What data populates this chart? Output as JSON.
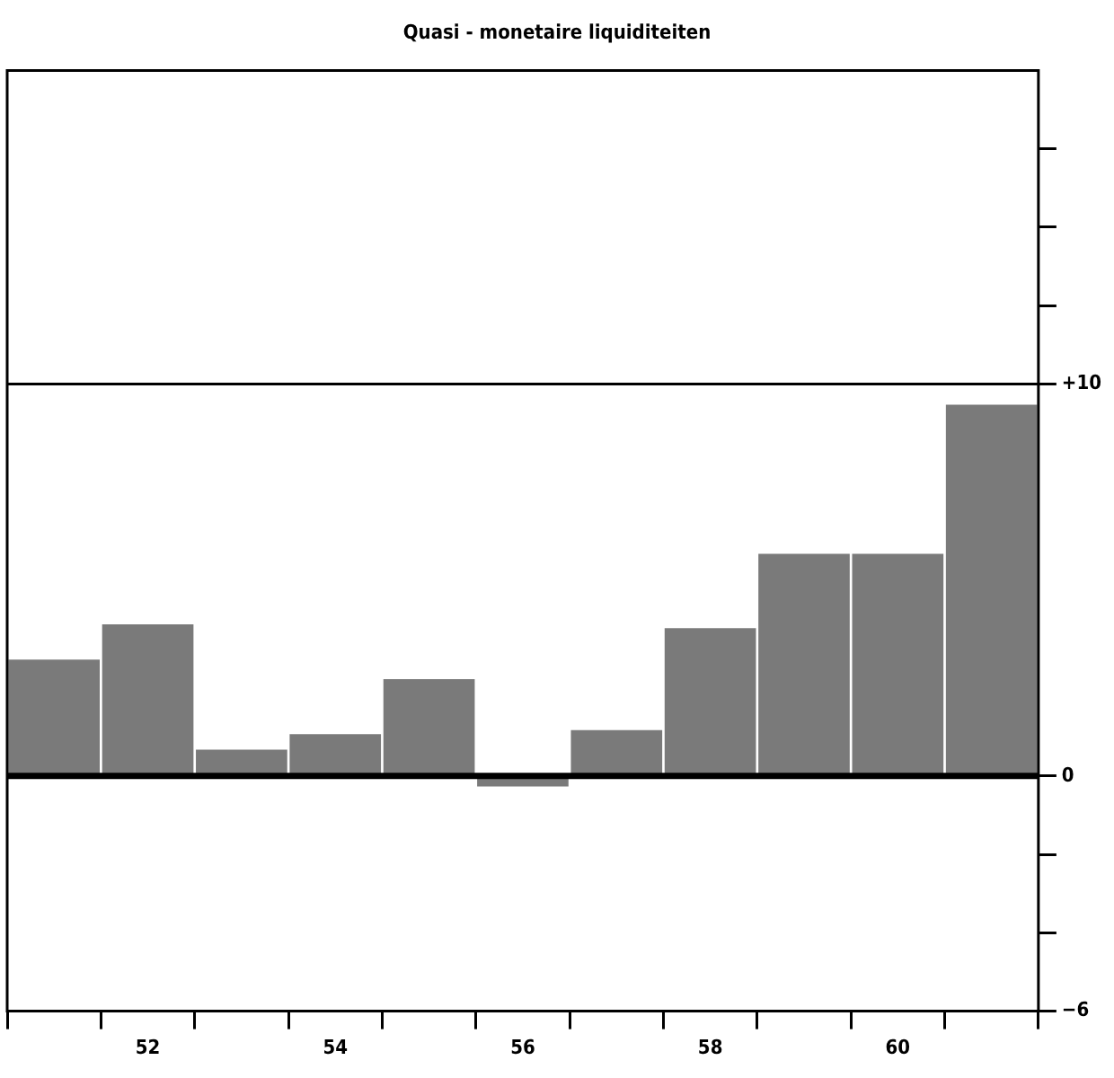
{
  "chart_data": {
    "type": "bar",
    "title": "Quasi - monetaire liquiditeiten",
    "categories": [
      null,
      "52",
      null,
      "54",
      null,
      "56",
      null,
      "58",
      null,
      "60",
      null
    ],
    "values": [
      3.0,
      3.9,
      0.7,
      1.1,
      2.5,
      -0.3,
      1.2,
      3.8,
      5.7,
      5.7,
      9.5
    ],
    "color": "#7a7a7a",
    "ylim": [
      -6,
      18
    ],
    "yticks": [
      {
        "value": -6,
        "label": "−6"
      },
      {
        "value": -4,
        "label": null
      },
      {
        "value": -2,
        "label": null
      },
      0,
      {
        "value": 10,
        "label": "+10"
      },
      {
        "value": 12,
        "label": null
      },
      {
        "value": 14,
        "label": null
      },
      {
        "value": 16,
        "label": null
      }
    ],
    "ref_lines": [
      {
        "axis": "y",
        "value": 0,
        "label": null
      },
      {
        "axis": "y",
        "value": 10,
        "label": null
      }
    ],
    "grid": false,
    "legend": false
  }
}
